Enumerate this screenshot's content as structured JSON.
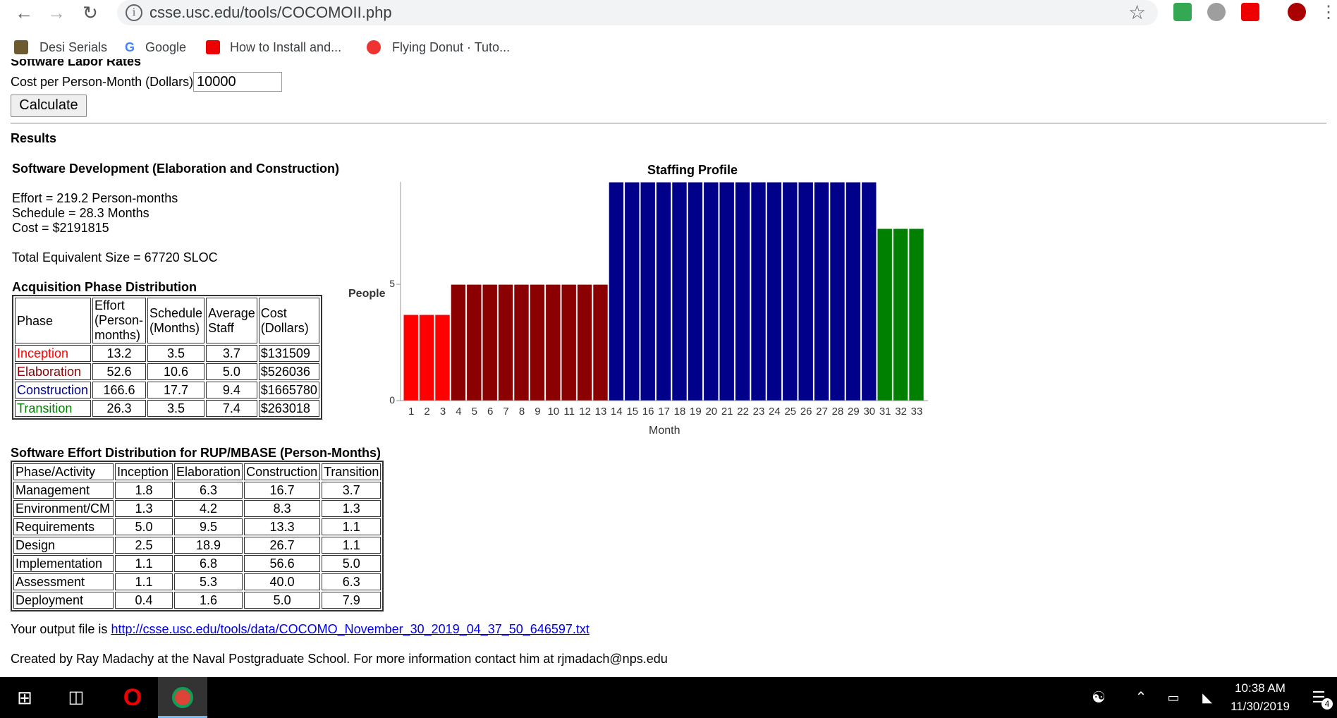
{
  "browser": {
    "url": "csse.usc.edu/tools/COCOMOII.php",
    "bookmarks": [
      "Desi Serials",
      "Google",
      "How to Install and...",
      "Flying Donut · Tuto..."
    ]
  },
  "form": {
    "cut_heading": "Software Labor Rates",
    "cost_label": "Cost per Person-Month (Dollars)",
    "cost_value": "10000",
    "calculate_label": "Calculate"
  },
  "results": {
    "heading": "Results",
    "dev_heading": "Software Development (Elaboration and Construction)",
    "effort": "Effort = 219.2 Person-months",
    "schedule": "Schedule = 28.3 Months",
    "cost": "Cost = $2191815",
    "size": "Total Equivalent Size = 67720 SLOC",
    "acq_heading": "Acquisition Phase Distribution",
    "acq_headers": [
      "Phase",
      "Effort (Person-months)",
      "Schedule (Months)",
      "Average Staff",
      "Cost (Dollars)"
    ],
    "acq_rows": [
      {
        "phase": "Inception",
        "effort": "13.2",
        "schedule": "3.5",
        "staff": "3.7",
        "cost": "$131509",
        "color": "#ff0000"
      },
      {
        "phase": "Elaboration",
        "effort": "52.6",
        "schedule": "10.6",
        "staff": "5.0",
        "cost": "$526036",
        "color": "#8b0000"
      },
      {
        "phase": "Construction",
        "effort": "166.6",
        "schedule": "17.7",
        "staff": "9.4",
        "cost": "$1665780",
        "color": "#00008b"
      },
      {
        "phase": "Transition",
        "effort": "26.3",
        "schedule": "3.5",
        "staff": "7.4",
        "cost": "$263018",
        "color": "#008000"
      }
    ],
    "rup_heading": "Software Effort Distribution for RUP/MBASE (Person-Months)",
    "rup_headers": [
      "Phase/Activity",
      "Inception",
      "Elaboration",
      "Construction",
      "Transition"
    ],
    "rup_rows": [
      [
        "Management",
        "1.8",
        "6.3",
        "16.7",
        "3.7"
      ],
      [
        "Environment/CM",
        "1.3",
        "4.2",
        "8.3",
        "1.3"
      ],
      [
        "Requirements",
        "5.0",
        "9.5",
        "13.3",
        "1.1"
      ],
      [
        "Design",
        "2.5",
        "18.9",
        "26.7",
        "1.1"
      ],
      [
        "Implementation",
        "1.1",
        "6.8",
        "56.6",
        "5.0"
      ],
      [
        "Assessment",
        "1.1",
        "5.3",
        "40.0",
        "6.3"
      ],
      [
        "Deployment",
        "0.4",
        "1.6",
        "5.0",
        "7.9"
      ]
    ],
    "output_prefix": "Your output file is ",
    "output_link": "http://csse.usc.edu/tools/data/COCOMO_November_30_2019_04_37_50_646597.txt",
    "footer": "Created by Ray Madachy at the Naval Postgraduate School. For more information contact him at rjmadach@nps.edu"
  },
  "chart_data": {
    "type": "bar",
    "title": "Staffing Profile",
    "xlabel": "Month",
    "ylabel": "People",
    "ylim": [
      0,
      9.4
    ],
    "yticks": [
      0,
      5
    ],
    "categories": [
      "1",
      "2",
      "3",
      "4",
      "5",
      "6",
      "7",
      "8",
      "9",
      "10",
      "11",
      "12",
      "13",
      "14",
      "15",
      "16",
      "17",
      "18",
      "19",
      "20",
      "21",
      "22",
      "23",
      "24",
      "25",
      "26",
      "27",
      "28",
      "29",
      "30",
      "31",
      "32",
      "33"
    ],
    "values": [
      3.7,
      3.7,
      3.7,
      5.0,
      5.0,
      5.0,
      5.0,
      5.0,
      5.0,
      5.0,
      5.0,
      5.0,
      5.0,
      9.4,
      9.4,
      9.4,
      9.4,
      9.4,
      9.4,
      9.4,
      9.4,
      9.4,
      9.4,
      9.4,
      9.4,
      9.4,
      9.4,
      9.4,
      9.4,
      9.4,
      7.4,
      7.4,
      7.4
    ],
    "phases": [
      "Inception",
      "Inception",
      "Inception",
      "Elaboration",
      "Elaboration",
      "Elaboration",
      "Elaboration",
      "Elaboration",
      "Elaboration",
      "Elaboration",
      "Elaboration",
      "Elaboration",
      "Elaboration",
      "Construction",
      "Construction",
      "Construction",
      "Construction",
      "Construction",
      "Construction",
      "Construction",
      "Construction",
      "Construction",
      "Construction",
      "Construction",
      "Construction",
      "Construction",
      "Construction",
      "Construction",
      "Construction",
      "Construction",
      "Transition",
      "Transition",
      "Transition"
    ],
    "phase_colors": {
      "Inception": "#ff0000",
      "Elaboration": "#8b0000",
      "Construction": "#00008b",
      "Transition": "#008000"
    }
  },
  "taskbar": {
    "time": "10:38 AM",
    "date": "11/30/2019",
    "notification_count": "4"
  }
}
